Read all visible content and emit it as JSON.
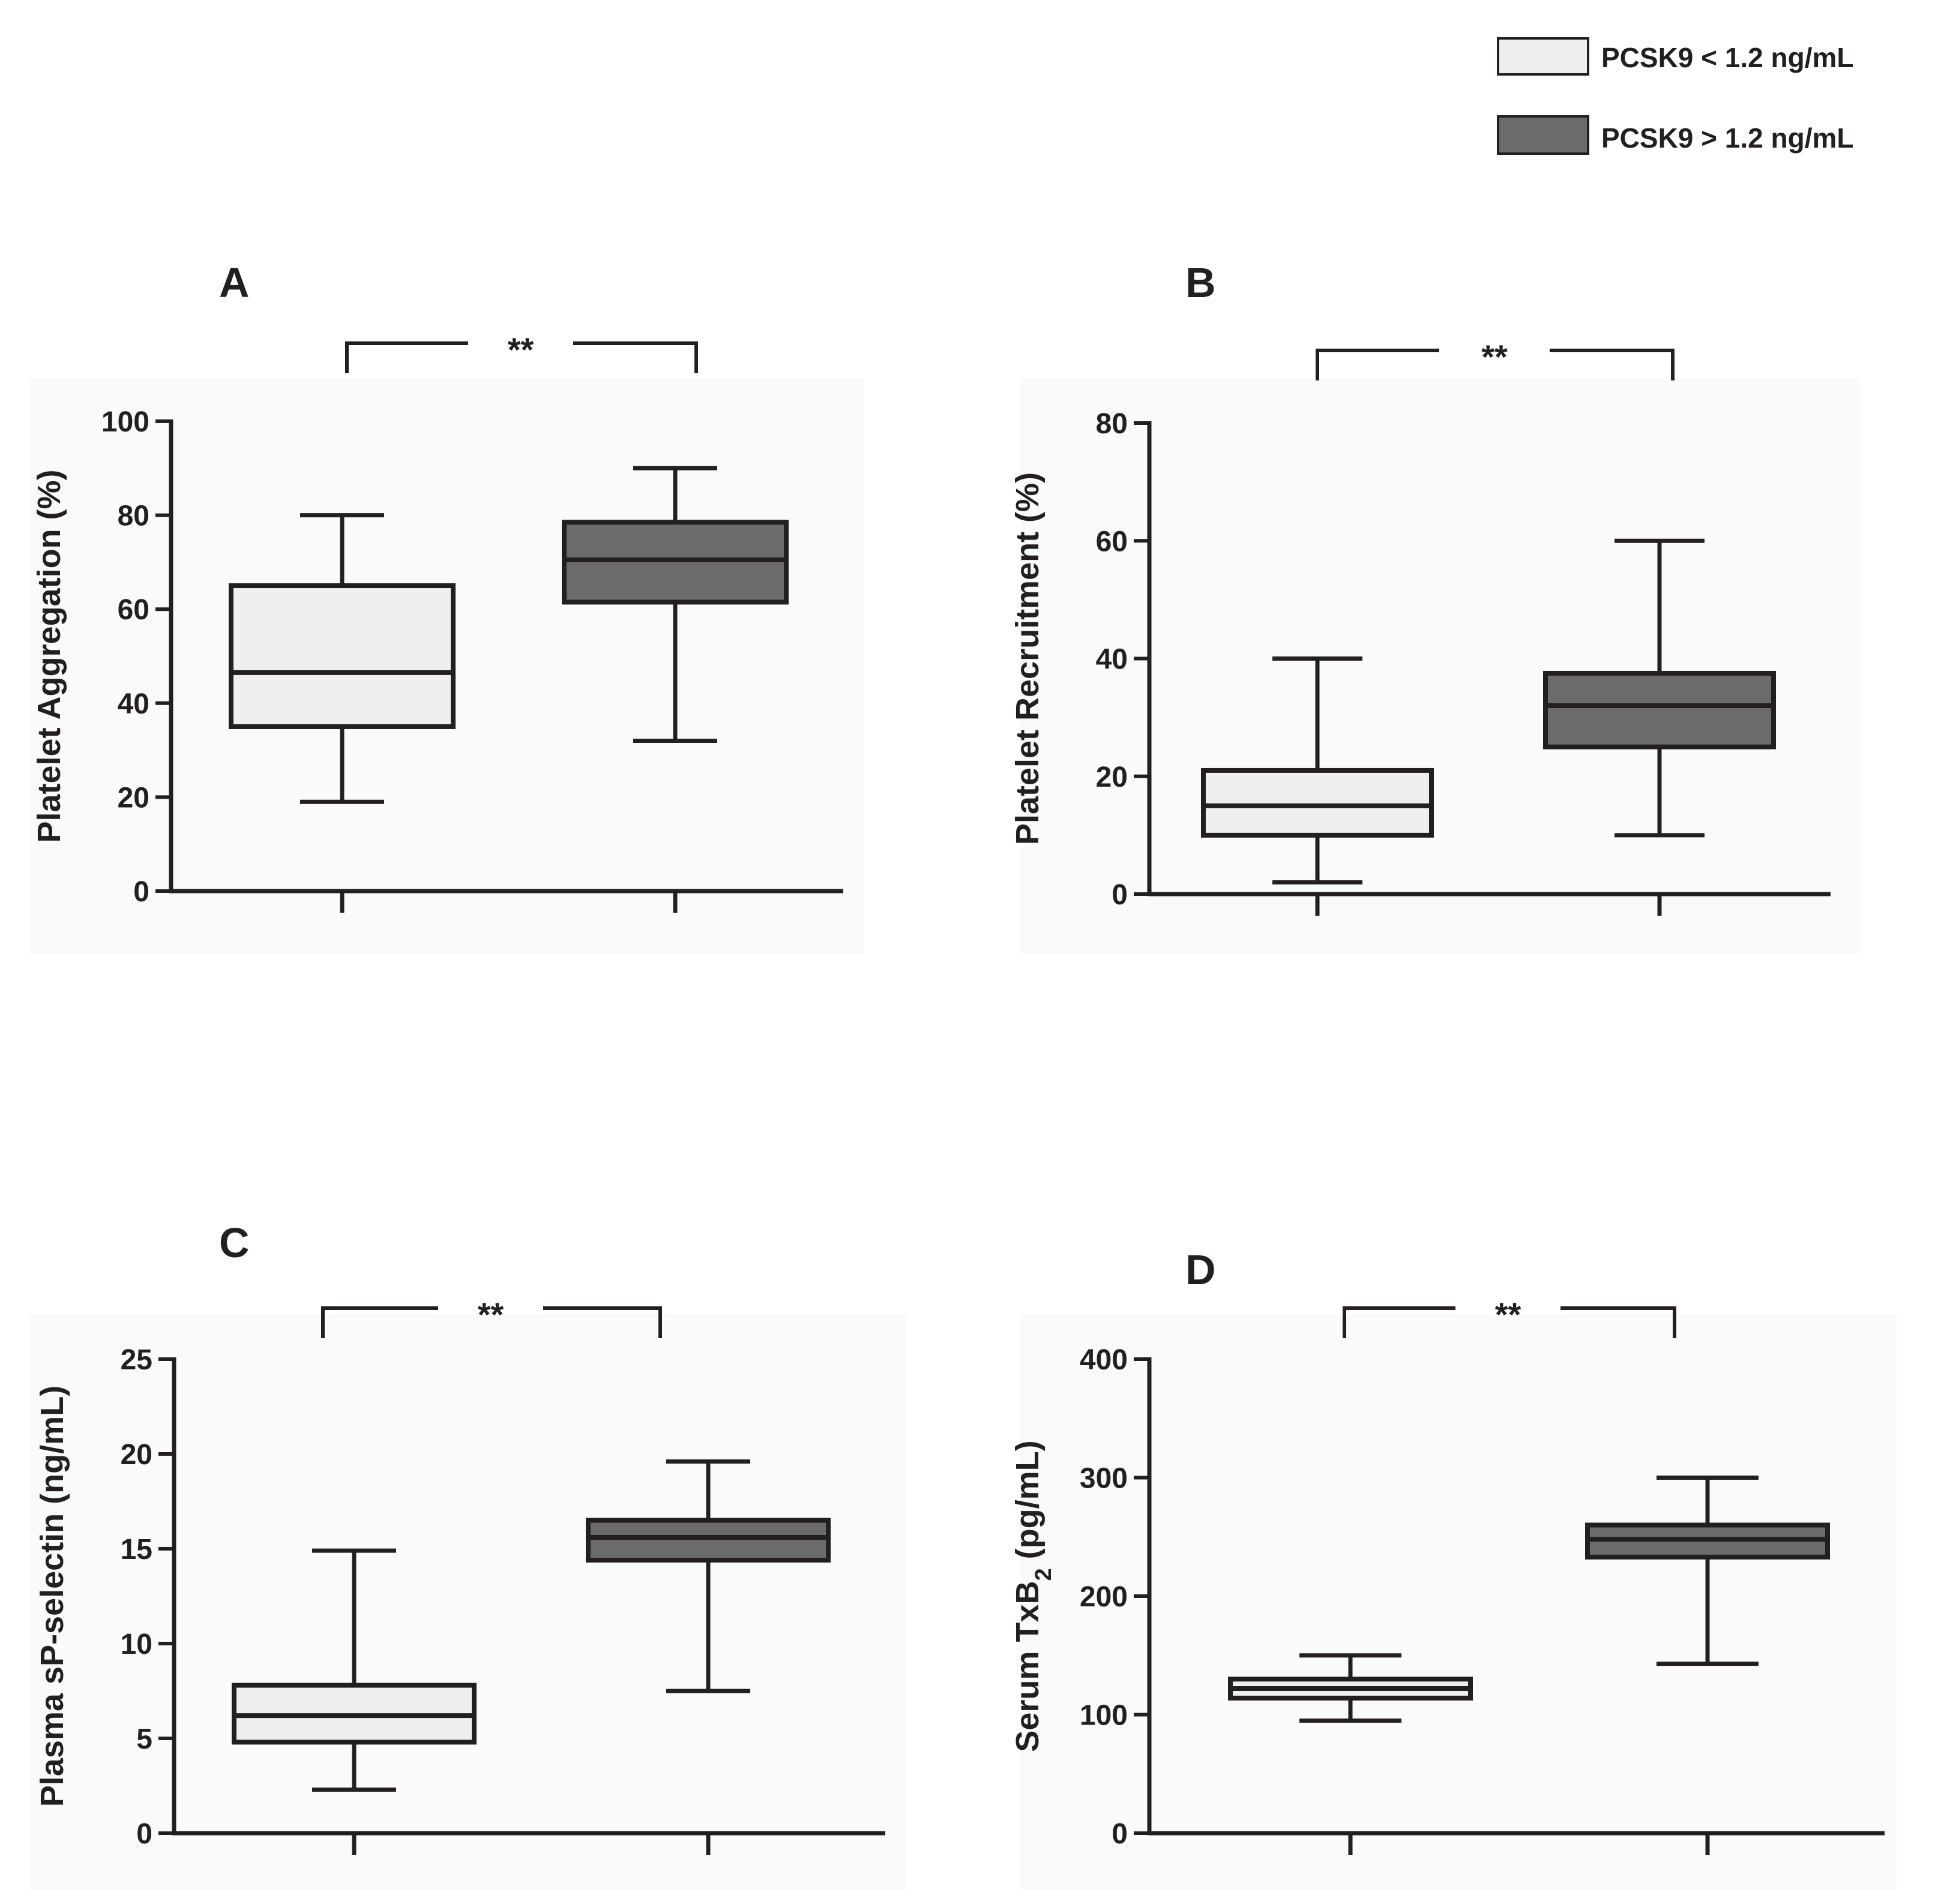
{
  "legend": {
    "items": [
      {
        "label": "PCSK9 < 1.2 ng/mL",
        "color": "#efefef"
      },
      {
        "label": "PCSK9 > 1.2 ng/mL",
        "color": "#6b6b6b"
      }
    ]
  },
  "colors": {
    "line": "#231f20",
    "low": "#efefef",
    "high": "#6b6b6b",
    "panel_bg": "#fafafa"
  },
  "chart_data": [
    {
      "panel": "A",
      "type": "box",
      "ylabel": "Platelet Aggregation (%)",
      "ylabel_sub": "",
      "ylabel_tail": "",
      "ylim": [
        0,
        100
      ],
      "yticks": [
        0,
        20,
        40,
        60,
        80,
        100
      ],
      "significance": "**",
      "series": [
        {
          "name": "PCSK9 < 1.2 ng/mL",
          "min": 19,
          "q1": 35,
          "median": 46.5,
          "q3": 65,
          "max": 80
        },
        {
          "name": "PCSK9 > 1.2 ng/mL",
          "min": 32,
          "q1": 61.5,
          "median": 70.5,
          "q3": 78.5,
          "max": 90
        }
      ]
    },
    {
      "panel": "B",
      "type": "box",
      "ylabel": "Platelet Recruitment (%)",
      "ylabel_sub": "",
      "ylabel_tail": "",
      "ylim": [
        0,
        80
      ],
      "yticks": [
        0,
        20,
        40,
        60,
        80
      ],
      "significance": "**",
      "series": [
        {
          "name": "PCSK9 < 1.2 ng/mL",
          "min": 2,
          "q1": 10,
          "median": 15,
          "q3": 21,
          "max": 40
        },
        {
          "name": "PCSK9 > 1.2 ng/mL",
          "min": 10,
          "q1": 25,
          "median": 32,
          "q3": 37.5,
          "max": 60
        }
      ]
    },
    {
      "panel": "C",
      "type": "box",
      "ylabel": "Plasma sP-selectin (ng/mL)",
      "ylabel_sub": "",
      "ylabel_tail": "",
      "ylim": [
        0,
        25
      ],
      "yticks": [
        0,
        5,
        10,
        15,
        20,
        25
      ],
      "significance": "**",
      "series": [
        {
          "name": "PCSK9 < 1.2 ng/mL",
          "min": 2.3,
          "q1": 4.8,
          "median": 6.2,
          "q3": 7.8,
          "max": 14.9
        },
        {
          "name": "PCSK9 > 1.2 ng/mL",
          "min": 7.5,
          "q1": 14.4,
          "median": 15.6,
          "q3": 16.5,
          "max": 19.6
        }
      ]
    },
    {
      "panel": "D",
      "type": "box",
      "ylabel": "Serum TxB",
      "ylabel_sub": "2",
      "ylabel_tail": " (pg/mL)",
      "ylim": [
        0,
        400
      ],
      "yticks": [
        0,
        100,
        200,
        300,
        400
      ],
      "significance": "**",
      "series": [
        {
          "name": "PCSK9 < 1.2 ng/mL",
          "min": 95,
          "q1": 114,
          "median": 122,
          "q3": 130,
          "max": 150
        },
        {
          "name": "PCSK9 > 1.2 ng/mL",
          "min": 143,
          "q1": 233,
          "median": 248,
          "q3": 260,
          "max": 300
        }
      ]
    }
  ]
}
